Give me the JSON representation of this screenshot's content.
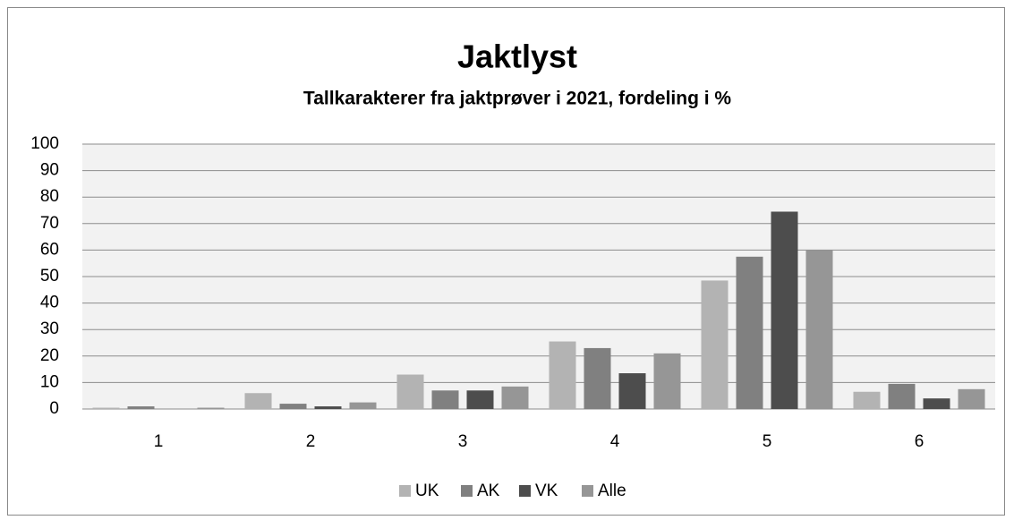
{
  "chart_data": {
    "type": "bar",
    "title": "Jaktlyst",
    "subtitle": "Tallkarakterer fra jaktprøver i 2021, fordeling i %",
    "categories": [
      "1",
      "2",
      "3",
      "4",
      "5",
      "6"
    ],
    "series": [
      {
        "name": "UK",
        "color": "#b3b3b3",
        "values": [
          0.5,
          6,
          13,
          25.5,
          48.5,
          6.5
        ]
      },
      {
        "name": "AK",
        "color": "#808080",
        "values": [
          1,
          2,
          7,
          23,
          57.5,
          9.5
        ]
      },
      {
        "name": "VK",
        "color": "#4d4d4d",
        "values": [
          0,
          1,
          7,
          13.5,
          74.5,
          4
        ]
      },
      {
        "name": "Alle",
        "color": "#969696",
        "values": [
          0.5,
          2.5,
          8.5,
          21,
          60,
          7.5
        ]
      }
    ],
    "ylim": [
      0,
      100
    ],
    "yticks": [
      0,
      10,
      20,
      30,
      40,
      50,
      60,
      70,
      80,
      90,
      100
    ],
    "grid": true,
    "legend": "bottom"
  }
}
